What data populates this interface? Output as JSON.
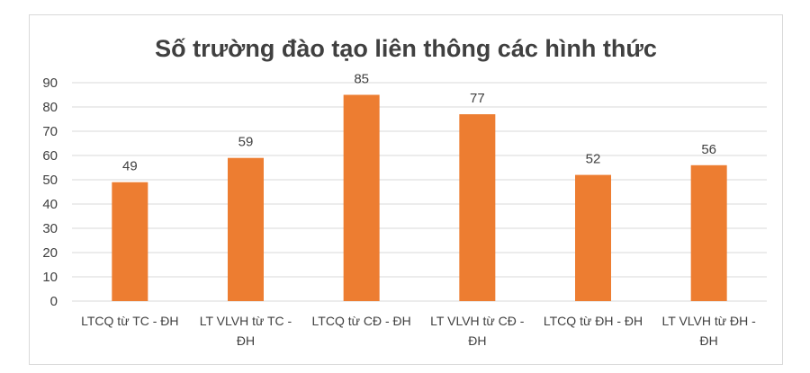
{
  "chart_data": {
    "type": "bar",
    "title": "Số trường đào tạo liên thông các hình thức",
    "xlabel": "",
    "ylabel": "",
    "categories": [
      [
        "LTCQ từ TC - ĐH"
      ],
      [
        "LT VLVH từ TC -",
        "ĐH"
      ],
      [
        "LTCQ từ CĐ - ĐH"
      ],
      [
        "LT VLVH từ CĐ -",
        "ĐH"
      ],
      [
        "LTCQ từ ĐH - ĐH"
      ],
      [
        "LT VLVH từ ĐH -",
        "ĐH"
      ]
    ],
    "values": [
      49,
      59,
      85,
      77,
      52,
      56
    ],
    "data_labels": [
      "49",
      "59",
      "85",
      "77",
      "52",
      "56"
    ],
    "ylim": [
      0,
      90
    ],
    "yticks": [
      "0",
      "10",
      "20",
      "30",
      "40",
      "50",
      "60",
      "70",
      "80",
      "90"
    ],
    "grid": true,
    "legend": "none",
    "colors": {
      "bar": "#ED7D31",
      "grid": "#d9d9d9",
      "text": "#404040"
    }
  }
}
